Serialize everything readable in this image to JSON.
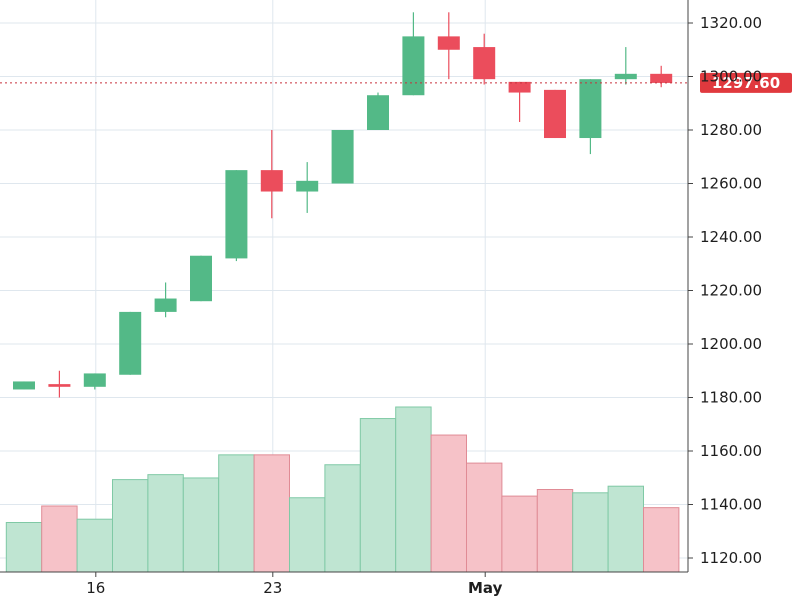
{
  "chart_data": {
    "type": "candlestick",
    "title": "",
    "xlabel": "",
    "ylabel": "",
    "ylim": [
      1112,
      1330
    ],
    "grid": true,
    "y_ticks": [
      "1120.00",
      "1140.00",
      "1160.00",
      "1180.00",
      "1200.00",
      "1220.00",
      "1240.00",
      "1260.00",
      "1280.00",
      "1300.00",
      "1320.00"
    ],
    "x_ticks": [
      {
        "label": "16",
        "index": 2,
        "bold": false
      },
      {
        "label": "23",
        "index": 7,
        "bold": false
      },
      {
        "label": "May",
        "index": 13,
        "bold": true
      }
    ],
    "current_price": {
      "label": "1297.60",
      "value": 1297.6
    },
    "colors": {
      "up": "#53b987",
      "down": "#eb4d5c",
      "volume_up": "#bfe5d2",
      "volume_up_border": "#7fc9a5",
      "volume_down": "#f6c2c8",
      "volume_down_border": "#e08b95",
      "grid": "#dfe7ee",
      "axis": "#444444",
      "price_line": "#c8323c",
      "price_tag": "#e0393e"
    },
    "candles": [
      {
        "open": 1183,
        "high": 1186,
        "low": 1183,
        "close": 1186,
        "volume": 0.3
      },
      {
        "open": 1185,
        "high": 1190,
        "low": 1180,
        "close": 1184,
        "volume": 0.4
      },
      {
        "open": 1184,
        "high": 1189,
        "low": 1183,
        "close": 1189,
        "volume": 0.32
      },
      {
        "open": 1188.5,
        "high": 1212,
        "low": 1188.5,
        "close": 1212,
        "volume": 0.56
      },
      {
        "open": 1212,
        "high": 1223,
        "low": 1210,
        "close": 1217,
        "volume": 0.59
      },
      {
        "open": 1216,
        "high": 1233,
        "low": 1216,
        "close": 1233,
        "volume": 0.57
      },
      {
        "open": 1232,
        "high": 1265,
        "low": 1231,
        "close": 1265,
        "volume": 0.71
      },
      {
        "open": 1265,
        "high": 1280,
        "low": 1247,
        "close": 1257,
        "volume": 0.71
      },
      {
        "open": 1257,
        "high": 1268,
        "low": 1249,
        "close": 1261,
        "volume": 0.45
      },
      {
        "open": 1260,
        "high": 1280,
        "low": 1260,
        "close": 1280,
        "volume": 0.65
      },
      {
        "open": 1280,
        "high": 1294,
        "low": 1280,
        "close": 1293,
        "volume": 0.93
      },
      {
        "open": 1293,
        "high": 1324,
        "low": 1293,
        "close": 1315,
        "volume": 1.0
      },
      {
        "open": 1315,
        "high": 1324,
        "low": 1299,
        "close": 1310,
        "volume": 0.83
      },
      {
        "open": 1311,
        "high": 1316,
        "low": 1297,
        "close": 1299,
        "volume": 0.66
      },
      {
        "open": 1298,
        "high": 1298,
        "low": 1283,
        "close": 1294,
        "volume": 0.46
      },
      {
        "open": 1295,
        "high": 1295,
        "low": 1277,
        "close": 1277,
        "volume": 0.5
      },
      {
        "open": 1277,
        "high": 1299,
        "low": 1271,
        "close": 1299,
        "volume": 0.48
      },
      {
        "open": 1299,
        "high": 1311,
        "low": 1297,
        "close": 1301,
        "volume": 0.52
      },
      {
        "open": 1301,
        "high": 1304,
        "low": 1296,
        "close": 1297.6,
        "volume": 0.39
      }
    ]
  }
}
